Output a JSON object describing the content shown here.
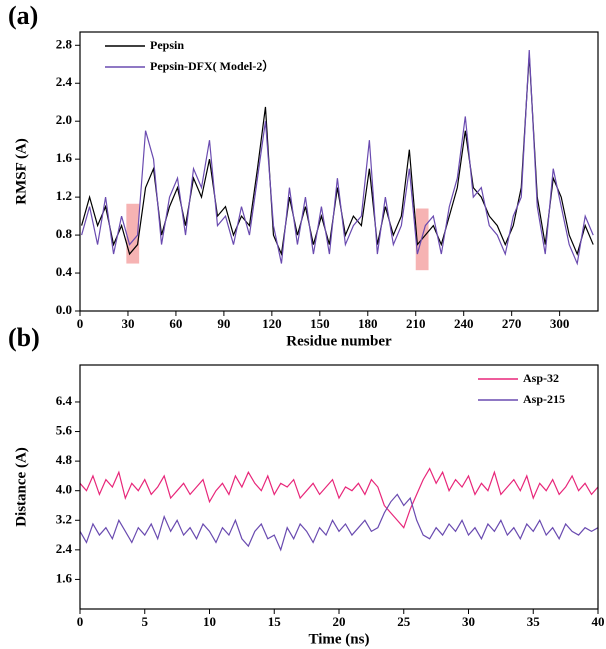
{
  "chart_data": [
    {
      "type": "line",
      "label": "(a)",
      "xlabel": "Residue number",
      "ylabel": "RMSF (A)",
      "xlim": [
        0,
        324
      ],
      "ylim": [
        0,
        2.94
      ],
      "xticks": [
        0,
        30,
        60,
        90,
        120,
        150,
        180,
        210,
        240,
        270,
        300
      ],
      "yticks": [
        {
          "value": 0,
          "label": "0.0"
        },
        0.4,
        0.8,
        1.2,
        1.6,
        {
          "value": 2,
          "label": "2.0"
        },
        2.4,
        2.8
      ],
      "legend": "upper left",
      "x": [
        1,
        6,
        11,
        16,
        21,
        26,
        31,
        36,
        41,
        46,
        51,
        56,
        61,
        66,
        71,
        76,
        81,
        86,
        91,
        96,
        101,
        106,
        111,
        116,
        121,
        126,
        131,
        136,
        141,
        146,
        151,
        156,
        161,
        166,
        171,
        176,
        181,
        186,
        191,
        196,
        201,
        206,
        211,
        216,
        221,
        226,
        231,
        236,
        241,
        246,
        251,
        256,
        261,
        266,
        271,
        276,
        281,
        286,
        291,
        296,
        301,
        306,
        311,
        316,
        321
      ],
      "series": [
        {
          "name": "Pepsin",
          "color": "#000000",
          "values": [
            0.9,
            1.2,
            0.9,
            1.1,
            0.7,
            0.9,
            0.6,
            0.7,
            1.3,
            1.5,
            0.8,
            1.1,
            1.3,
            0.9,
            1.4,
            1.2,
            1.6,
            1.0,
            1.1,
            0.8,
            1.0,
            0.9,
            1.5,
            2.15,
            0.8,
            0.6,
            1.2,
            0.8,
            1.1,
            0.7,
            1.0,
            0.7,
            1.3,
            0.8,
            1.0,
            0.9,
            1.5,
            0.7,
            1.1,
            0.8,
            1.0,
            1.7,
            0.7,
            0.8,
            0.9,
            0.7,
            1.0,
            1.3,
            1.9,
            1.3,
            1.2,
            1.0,
            0.9,
            0.7,
            0.9,
            1.3,
            2.7,
            1.2,
            0.7,
            1.4,
            1.2,
            0.8,
            0.6,
            0.9,
            0.7
          ]
        },
        {
          "name": "Pepsin-DFX( Model-2）",
          "color": "#6a4bb0",
          "values": [
            0.8,
            1.1,
            0.7,
            1.2,
            0.6,
            1.0,
            0.7,
            0.8,
            1.9,
            1.6,
            0.7,
            1.2,
            1.4,
            0.8,
            1.5,
            1.3,
            1.8,
            0.9,
            1.0,
            0.7,
            1.1,
            0.8,
            1.4,
            2.0,
            0.9,
            0.5,
            1.3,
            0.7,
            1.2,
            0.6,
            1.1,
            0.6,
            1.4,
            0.7,
            0.9,
            1.0,
            1.8,
            0.6,
            1.2,
            0.7,
            0.9,
            1.5,
            0.6,
            0.9,
            1.0,
            0.6,
            1.1,
            1.4,
            2.05,
            1.2,
            1.3,
            0.9,
            0.8,
            0.6,
            1.0,
            1.2,
            2.75,
            1.1,
            0.6,
            1.5,
            1.1,
            0.7,
            0.5,
            1.0,
            0.8
          ]
        }
      ],
      "highlights": [
        {
          "x": [
            29,
            37
          ],
          "y": [
            0.5,
            1.13
          ]
        },
        {
          "x": [
            210,
            218
          ],
          "y": [
            0.43,
            1.08
          ]
        }
      ]
    },
    {
      "type": "line",
      "label": "(b)",
      "xlabel": "Time (ns)",
      "ylabel": "Distance (A)",
      "xlim": [
        0,
        40
      ],
      "ylim": [
        0.8,
        7.4
      ],
      "xticks": [
        0,
        5,
        10,
        15,
        20,
        25,
        30,
        35,
        40
      ],
      "yticks": [
        1.6,
        2.4,
        3.2,
        {
          "value": 4,
          "label": "4.0"
        },
        4.8,
        5.6,
        6.4
      ],
      "legend": "upper right",
      "x": [
        0,
        0.5,
        1,
        1.5,
        2,
        2.5,
        3,
        3.5,
        4,
        4.5,
        5,
        5.5,
        6,
        6.5,
        7,
        7.5,
        8,
        8.5,
        9,
        9.5,
        10,
        10.5,
        11,
        11.5,
        12,
        12.5,
        13,
        13.5,
        14,
        14.5,
        15,
        15.5,
        16,
        16.5,
        17,
        17.5,
        18,
        18.5,
        19,
        19.5,
        20,
        20.5,
        21,
        21.5,
        22,
        22.5,
        23,
        23.5,
        24,
        24.5,
        25,
        25.5,
        26,
        26.5,
        27,
        27.5,
        28,
        28.5,
        29,
        29.5,
        30,
        30.5,
        31,
        31.5,
        32,
        32.5,
        33,
        33.5,
        34,
        34.5,
        35,
        35.5,
        36,
        36.5,
        37,
        37.5,
        38,
        38.5,
        39,
        39.5,
        40
      ],
      "series": [
        {
          "name": "Asp-32",
          "color": "#e8277a",
          "values": [
            4.2,
            4.0,
            4.4,
            3.9,
            4.3,
            4.1,
            4.5,
            3.8,
            4.2,
            4.0,
            4.3,
            3.9,
            4.1,
            4.4,
            3.8,
            4.0,
            4.2,
            3.9,
            4.1,
            4.3,
            3.7,
            4.0,
            4.2,
            3.9,
            4.4,
            4.1,
            4.5,
            4.2,
            4.0,
            4.4,
            3.9,
            4.2,
            4.1,
            4.3,
            3.8,
            4.0,
            4.2,
            3.9,
            4.1,
            4.3,
            3.8,
            4.1,
            4.0,
            4.2,
            3.9,
            4.3,
            4.1,
            3.6,
            3.4,
            3.2,
            3.0,
            3.5,
            3.9,
            4.3,
            4.6,
            4.2,
            4.5,
            4.0,
            4.3,
            4.1,
            4.4,
            3.9,
            4.2,
            4.0,
            4.5,
            3.9,
            4.1,
            4.3,
            4.0,
            4.4,
            3.8,
            4.2,
            4.0,
            4.3,
            3.9,
            4.1,
            4.4,
            4.0,
            4.2,
            3.9,
            4.1
          ]
        },
        {
          "name": "Asp-215",
          "color": "#6a4bb0",
          "values": [
            2.9,
            2.6,
            3.1,
            2.8,
            3.0,
            2.7,
            3.2,
            2.9,
            2.6,
            3.0,
            2.8,
            3.1,
            2.7,
            3.3,
            2.9,
            3.2,
            2.8,
            3.0,
            2.7,
            3.1,
            2.9,
            2.6,
            3.0,
            2.8,
            3.2,
            2.7,
            2.5,
            2.9,
            3.1,
            2.7,
            2.8,
            2.4,
            3.0,
            2.7,
            3.1,
            2.9,
            2.6,
            3.0,
            2.8,
            3.2,
            2.9,
            3.1,
            2.8,
            3.0,
            3.2,
            2.9,
            3.0,
            3.4,
            3.7,
            3.9,
            3.6,
            3.8,
            3.2,
            2.8,
            2.7,
            3.0,
            2.8,
            3.1,
            2.9,
            3.2,
            2.8,
            3.0,
            2.7,
            3.1,
            2.9,
            3.2,
            2.8,
            3.0,
            2.7,
            3.1,
            2.9,
            3.2,
            2.8,
            3.0,
            2.7,
            3.1,
            2.9,
            2.8,
            3.0,
            2.9,
            3.0
          ]
        }
      ]
    }
  ]
}
